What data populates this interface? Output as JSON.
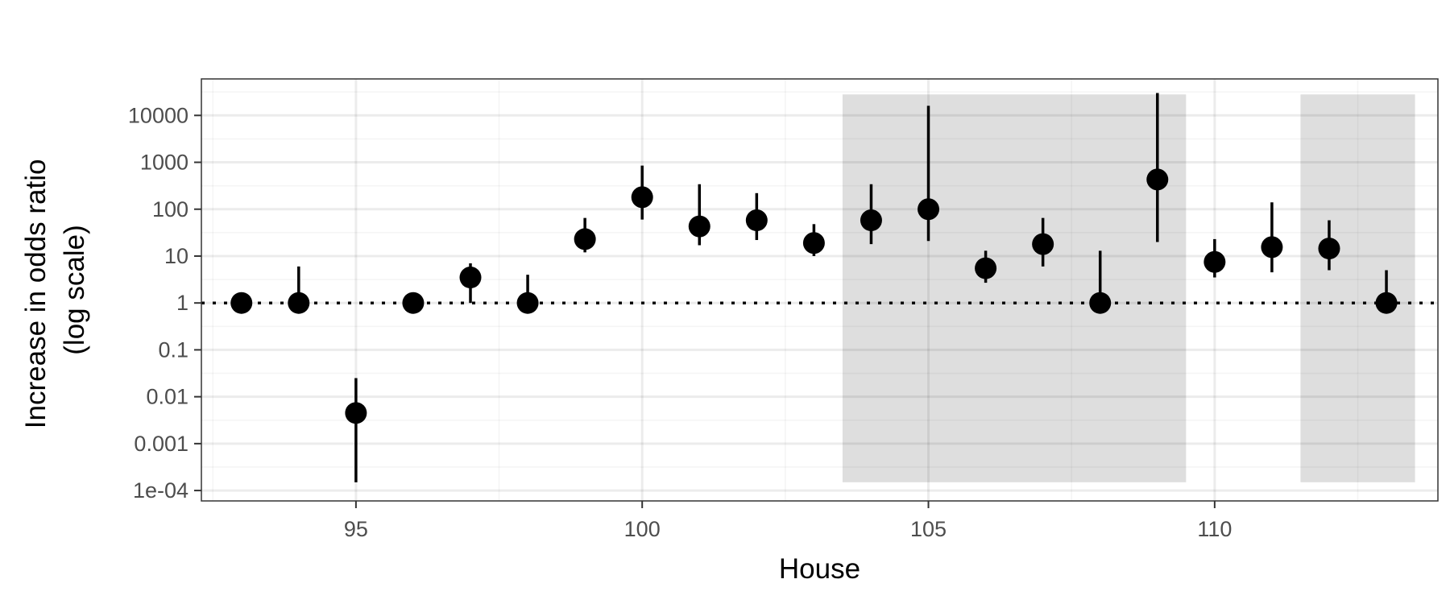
{
  "chart_data": {
    "type": "scatter",
    "xlabel": "House",
    "ylabel_line1": "Increase in odds ratio",
    "ylabel_line2": "(log scale)",
    "y_scale": "log10",
    "xlim": [
      92.3,
      113.9
    ],
    "ylim": [
      6e-05,
      60000
    ],
    "x_ticks": [
      95,
      100,
      105,
      110
    ],
    "x_tick_labels": [
      "95",
      "100",
      "105",
      "110"
    ],
    "y_ticks": [
      0.0001,
      0.001,
      0.01,
      0.1,
      1,
      10,
      100,
      1000,
      10000
    ],
    "y_tick_labels": [
      "1e-04",
      "0.001",
      "0.01",
      "0.1",
      "1",
      "10",
      "100",
      "1000",
      "10000"
    ],
    "grid": true,
    "reference_line": 1,
    "shaded_ranges": [
      {
        "x_start": 103.5,
        "x_end": 109.5
      },
      {
        "x_start": 111.5,
        "x_end": 113.5
      }
    ],
    "points": [
      {
        "x": 93,
        "y": 1,
        "lower": null,
        "upper": null
      },
      {
        "x": 94,
        "y": 1,
        "lower": 1,
        "upper": 6
      },
      {
        "x": 95,
        "y": 0.0045,
        "lower": 0.00015,
        "upper": 0.025
      },
      {
        "x": 96,
        "y": 1,
        "lower": null,
        "upper": null
      },
      {
        "x": 97,
        "y": 3.5,
        "lower": 1,
        "upper": 7
      },
      {
        "x": 98,
        "y": 1,
        "lower": 1,
        "upper": 4
      },
      {
        "x": 99,
        "y": 23,
        "lower": 12,
        "upper": 65
      },
      {
        "x": 100,
        "y": 180,
        "lower": 60,
        "upper": 850
      },
      {
        "x": 101,
        "y": 43,
        "lower": 17,
        "upper": 340
      },
      {
        "x": 102,
        "y": 58,
        "lower": 22,
        "upper": 220
      },
      {
        "x": 103,
        "y": 19,
        "lower": 10,
        "upper": 48
      },
      {
        "x": 104,
        "y": 58,
        "lower": 18,
        "upper": 340
      },
      {
        "x": 105,
        "y": 100,
        "lower": 21,
        "upper": 16000
      },
      {
        "x": 106,
        "y": 5.5,
        "lower": 2.7,
        "upper": 13
      },
      {
        "x": 107,
        "y": 18,
        "lower": 6,
        "upper": 65
      },
      {
        "x": 108,
        "y": 1,
        "lower": 1,
        "upper": 13
      },
      {
        "x": 109,
        "y": 430,
        "lower": 20,
        "upper": 30000
      },
      {
        "x": 110,
        "y": 7.5,
        "lower": 3.5,
        "upper": 23
      },
      {
        "x": 111,
        "y": 15.5,
        "lower": 4.5,
        "upper": 140
      },
      {
        "x": 112,
        "y": 14.5,
        "lower": 5,
        "upper": 58
      },
      {
        "x": 113,
        "y": 1,
        "lower": 1,
        "upper": 5
      }
    ]
  }
}
